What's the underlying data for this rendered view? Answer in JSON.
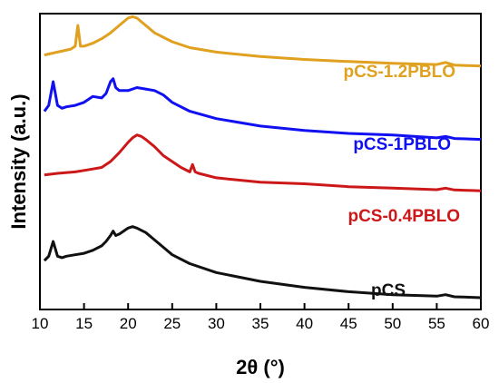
{
  "chart_data": {
    "type": "line",
    "title": "",
    "xlabel": "2θ (°)",
    "ylabel": "Intensity (a.u.)",
    "xlim": [
      10,
      60
    ],
    "x_ticks": [
      "10",
      "15",
      "20",
      "25",
      "30",
      "35",
      "40",
      "45",
      "50",
      "55",
      "60"
    ],
    "y_ticks_labeled": false,
    "grid": false,
    "legend": "none",
    "series": [
      {
        "name": "pCS-1.2PBLO",
        "color": "#E0A020",
        "x": [
          10.5,
          12,
          13.5,
          14,
          14.3,
          14.6,
          15,
          16,
          17,
          18,
          19,
          20,
          20.5,
          21,
          22,
          23,
          24,
          25,
          27,
          30,
          35,
          40,
          45,
          50,
          55,
          56,
          57,
          58,
          59,
          60
        ],
        "y": [
          0.86,
          0.87,
          0.88,
          0.89,
          0.96,
          0.89,
          0.89,
          0.9,
          0.915,
          0.935,
          0.96,
          0.985,
          0.99,
          0.985,
          0.96,
          0.935,
          0.92,
          0.905,
          0.885,
          0.87,
          0.855,
          0.845,
          0.838,
          0.832,
          0.828,
          0.835,
          0.826,
          0.825,
          0.824,
          0.823
        ]
      },
      {
        "name": "pCS-1PBLO",
        "color": "#1010F0",
        "x": [
          10.5,
          11,
          11.5,
          12,
          12.5,
          13,
          14,
          15,
          16,
          17,
          17.5,
          18,
          18.3,
          18.6,
          19,
          20,
          21,
          22,
          23,
          24,
          25,
          27,
          30,
          35,
          40,
          45,
          50,
          55,
          56,
          57,
          58,
          59,
          60
        ],
        "y": [
          0.67,
          0.69,
          0.77,
          0.69,
          0.68,
          0.685,
          0.69,
          0.7,
          0.72,
          0.715,
          0.73,
          0.77,
          0.78,
          0.75,
          0.74,
          0.74,
          0.75,
          0.745,
          0.74,
          0.725,
          0.7,
          0.67,
          0.645,
          0.62,
          0.605,
          0.595,
          0.59,
          0.58,
          0.585,
          0.578,
          0.577,
          0.576,
          0.575
        ]
      },
      {
        "name": "pCS-0.4PBLO",
        "color": "#CC1818",
        "x": [
          10.5,
          12,
          14,
          15,
          16,
          17,
          18,
          19,
          20,
          20.5,
          21,
          21.5,
          22,
          23,
          24,
          25,
          26,
          27,
          27.3,
          27.6,
          28,
          30,
          35,
          40,
          45,
          50,
          55,
          56,
          57,
          58,
          59,
          60
        ],
        "y": [
          0.455,
          0.46,
          0.465,
          0.47,
          0.475,
          0.48,
          0.5,
          0.53,
          0.565,
          0.58,
          0.59,
          0.585,
          0.575,
          0.55,
          0.52,
          0.5,
          0.48,
          0.465,
          0.49,
          0.465,
          0.46,
          0.445,
          0.43,
          0.425,
          0.415,
          0.41,
          0.405,
          0.41,
          0.404,
          0.403,
          0.402,
          0.401
        ]
      },
      {
        "name": "pCS",
        "color": "#111111",
        "x": [
          10.5,
          11,
          11.5,
          12,
          12.5,
          13,
          14,
          15,
          16,
          17,
          17.5,
          18,
          18.3,
          18.6,
          19,
          20,
          20.5,
          21,
          22,
          23,
          24,
          25,
          27,
          30,
          35,
          40,
          45,
          50,
          55,
          56,
          57,
          58,
          59,
          60
        ],
        "y": [
          0.165,
          0.18,
          0.23,
          0.18,
          0.175,
          0.18,
          0.185,
          0.19,
          0.2,
          0.215,
          0.23,
          0.25,
          0.265,
          0.25,
          0.255,
          0.275,
          0.28,
          0.275,
          0.26,
          0.235,
          0.21,
          0.185,
          0.155,
          0.125,
          0.095,
          0.075,
          0.06,
          0.05,
          0.045,
          0.05,
          0.043,
          0.042,
          0.041,
          0.04
        ]
      }
    ]
  }
}
